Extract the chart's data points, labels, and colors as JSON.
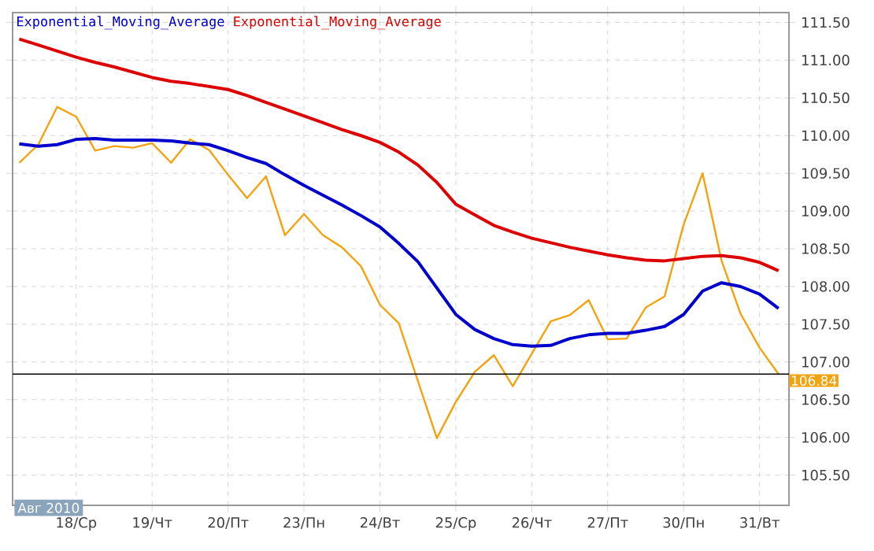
{
  "chart_data": {
    "type": "line",
    "categories": [
      null,
      null,
      null,
      "18/Ср",
      null,
      null,
      null,
      "19/Чт",
      null,
      null,
      null,
      "20/Пт",
      null,
      null,
      null,
      "23/Пн",
      null,
      null,
      null,
      "24/Вт",
      null,
      null,
      null,
      "25/Ср",
      null,
      null,
      null,
      "26/Чт",
      null,
      null,
      null,
      "27/Пт",
      null,
      null,
      null,
      "30/Пн",
      null,
      null,
      null,
      "31/Вт",
      null
    ],
    "ylim": [
      105.1,
      111.63
    ],
    "yticks": [
      {
        "value": 105.5,
        "label": "105.50"
      },
      {
        "value": 106,
        "label": "106.00"
      },
      {
        "value": 106.5,
        "label": "106.50"
      },
      {
        "value": 107,
        "label": "107.00"
      },
      {
        "value": 107.5,
        "label": "107.50"
      },
      {
        "value": 108,
        "label": "108.00"
      },
      {
        "value": 108.5,
        "label": "108.50"
      },
      {
        "value": 109,
        "label": "109.00"
      },
      {
        "value": 109.5,
        "label": "109.50"
      },
      {
        "value": 110,
        "label": "110.00"
      },
      {
        "value": 110.5,
        "label": "110.50"
      },
      {
        "value": 111,
        "label": "111.00"
      },
      {
        "value": 111.5,
        "label": "111.50"
      }
    ],
    "grid": true,
    "legend": "top left",
    "series": [
      {
        "color": "#f2a30f",
        "values": [
          109.64,
          109.88,
          110.38,
          110.25,
          109.8,
          109.86,
          109.84,
          109.9,
          109.64,
          109.95,
          109.81,
          109.48,
          109.17,
          109.46,
          108.68,
          108.96,
          108.68,
          108.52,
          108.27,
          107.76,
          107.51,
          106.75,
          105.99,
          106.47,
          106.87,
          107.09,
          106.68,
          107.11,
          107.54,
          107.62,
          107.82,
          107.3,
          107.31,
          107.72,
          107.87,
          108.82,
          109.5,
          108.34,
          107.64,
          107.19,
          106.84
        ]
      },
      {
        "name": "Exponential_Moving_Average",
        "color": "#0000cc",
        "values": [
          109.89,
          109.86,
          109.88,
          109.95,
          109.96,
          109.94,
          109.94,
          109.94,
          109.93,
          109.9,
          109.88,
          109.8,
          109.71,
          109.63,
          109.48,
          109.34,
          109.21,
          109.08,
          108.94,
          108.79,
          108.57,
          108.33,
          107.98,
          107.63,
          107.43,
          107.31,
          107.23,
          107.21,
          107.22,
          107.31,
          107.36,
          107.38,
          107.38,
          107.42,
          107.47,
          107.63,
          107.94,
          108.05,
          108.0,
          107.9,
          107.71
        ]
      },
      {
        "name": "Exponential_Moving_Average",
        "color": "#dd0000",
        "values": [
          111.28,
          111.2,
          111.12,
          111.04,
          110.97,
          110.91,
          110.84,
          110.77,
          110.72,
          110.69,
          110.65,
          110.61,
          110.53,
          110.44,
          110.35,
          110.26,
          110.17,
          110.08,
          110.0,
          109.91,
          109.78,
          109.61,
          109.38,
          109.09,
          108.95,
          108.81,
          108.72,
          108.64,
          108.58,
          108.52,
          108.47,
          108.42,
          108.38,
          108.35,
          108.34,
          108.37,
          108.4,
          108.41,
          108.38,
          108.32,
          108.21
        ]
      }
    ],
    "ref_lines": [
      {
        "axis": "y",
        "value": 106.84,
        "label": "106.84",
        "color": "#000000"
      }
    ],
    "annotations": [
      "Авг 2010"
    ]
  }
}
